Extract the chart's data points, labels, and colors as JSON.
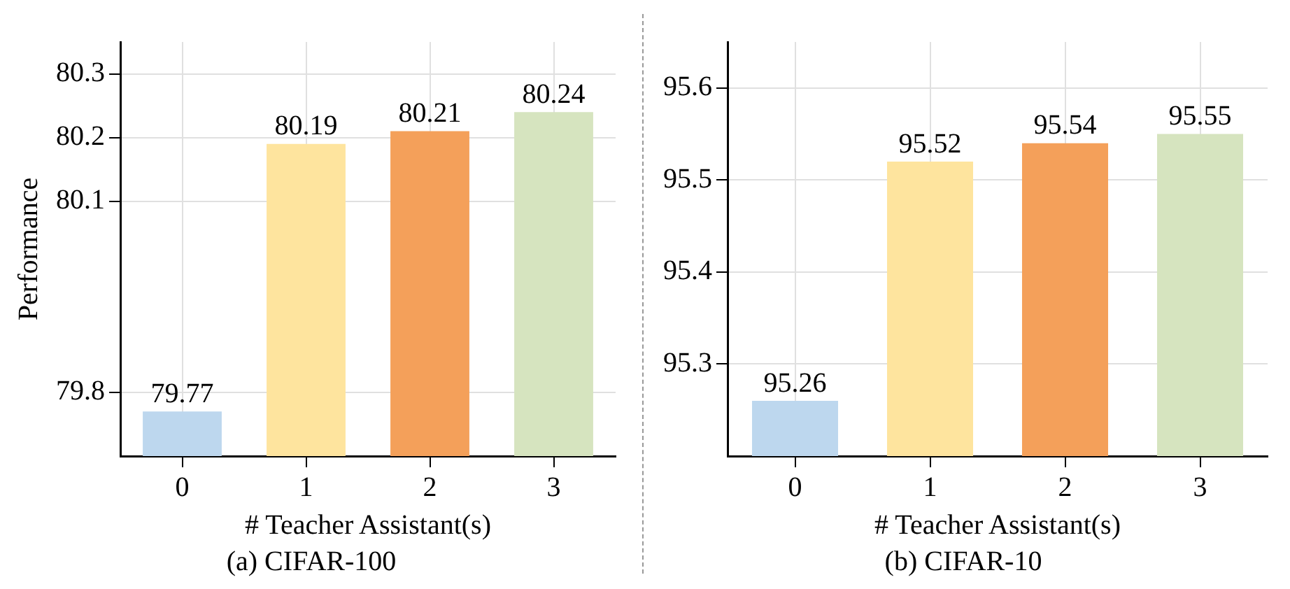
{
  "chart_data": [
    {
      "type": "bar",
      "title": "(a) CIFAR-100",
      "xlabel": "# Teacher Assistant(s)",
      "ylabel": "Performance",
      "categories": [
        "0",
        "1",
        "2",
        "3"
      ],
      "values": [
        79.77,
        80.19,
        80.21,
        80.24
      ],
      "colors": [
        "#bdd7ee",
        "#fee49e",
        "#f4a05a",
        "#d6e4bf"
      ],
      "ylim": [
        79.7,
        80.35
      ],
      "yticks": [
        79.8,
        80.1,
        80.2,
        80.3
      ],
      "grid": true,
      "data_labels": true
    },
    {
      "type": "bar",
      "title": "(b) CIFAR-10",
      "xlabel": "# Teacher Assistant(s)",
      "categories": [
        "0",
        "1",
        "2",
        "3"
      ],
      "values": [
        95.26,
        95.52,
        95.54,
        95.55
      ],
      "colors": [
        "#bdd7ee",
        "#fee49e",
        "#f4a05a",
        "#d6e4bf"
      ],
      "ylim": [
        95.2,
        95.65
      ],
      "yticks": [
        95.3,
        95.4,
        95.5,
        95.6
      ],
      "grid": true,
      "data_labels": true
    }
  ]
}
